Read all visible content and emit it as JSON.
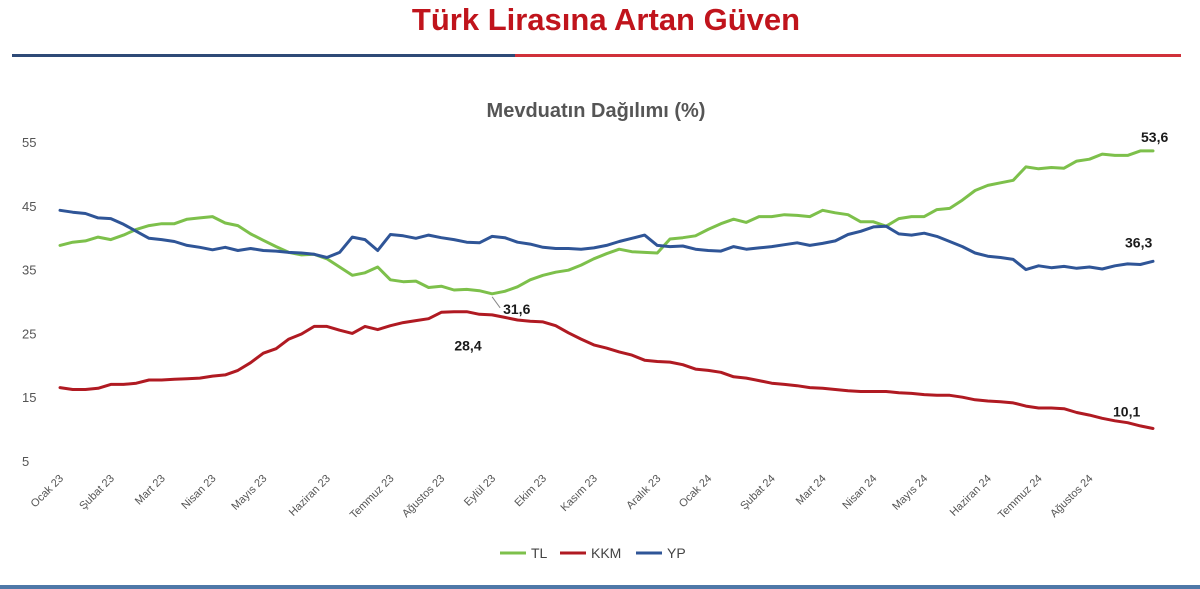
{
  "title": "Türk Lirasına Artan Güven",
  "colors": {
    "rule_left": "#2e4a77",
    "rule_right": "#d0313a"
  },
  "chart_data": {
    "type": "line",
    "subtitle": "Mevduatın Dağılımı (%)",
    "xlabel": "",
    "ylabel": "",
    "ylim": [
      5,
      55
    ],
    "y_ticks": [
      5,
      15,
      25,
      35,
      45,
      55
    ],
    "grid": false,
    "legend_position": "bottom-center",
    "x_tick_labels": [
      "Ocak 23",
      "Şubat 23",
      "Mart 23",
      "Nisan 23",
      "Mayıs 23",
      "Haziran 23",
      "Temmuz 23",
      "Ağustos 23",
      "Eylül 23",
      "Ekim 23",
      "Kasım 23",
      "Aralık 23",
      "Ocak 24",
      "Şubat 24",
      "Mart 24",
      "Nisan 24",
      "Mayıs 24",
      "Haziran 24",
      "Temmuz 24",
      "Ağustos 24"
    ],
    "x_tick_index": [
      0,
      4,
      8,
      12,
      16,
      21,
      26,
      30,
      34,
      38,
      42,
      47,
      51,
      56,
      60,
      64,
      68,
      73,
      77,
      81
    ],
    "series": [
      {
        "name": "TL",
        "color": "#7dc04b",
        "values": [
          38.8,
          39.3,
          39.5,
          40.1,
          39.7,
          40.4,
          41.3,
          41.9,
          42.2,
          42.2,
          42.9,
          43.1,
          43.3,
          42.3,
          41.9,
          40.6,
          39.6,
          38.6,
          37.7,
          37.3,
          37.4,
          36.7,
          35.4,
          34.1,
          34.5,
          35.4,
          33.4,
          33.1,
          33.2,
          32.2,
          32.4,
          31.8,
          31.9,
          31.7,
          31.2,
          31.6,
          32.3,
          33.4,
          34.1,
          34.6,
          34.9,
          35.7,
          36.7,
          37.5,
          38.2,
          37.8,
          37.7,
          37.6,
          39.8,
          40.0,
          40.3,
          41.3,
          42.2,
          42.9,
          42.4,
          43.3,
          43.3,
          43.6,
          43.5,
          43.3,
          44.3,
          43.9,
          43.6,
          42.5,
          42.5,
          41.8,
          43.0,
          43.3,
          43.3,
          44.4,
          44.6,
          45.9,
          47.4,
          48.2,
          48.6,
          49.0,
          51.1,
          50.8,
          51.0,
          50.9,
          52.0,
          52.3,
          53.1,
          52.9,
          52.9,
          53.6,
          53.6
        ],
        "last_label": "53,6",
        "min_label": "31,6"
      },
      {
        "name": "KKM",
        "color": "#b01a22",
        "values": [
          16.5,
          16.2,
          16.2,
          16.4,
          17.0,
          17.0,
          17.2,
          17.7,
          17.7,
          17.8,
          17.9,
          18.0,
          18.3,
          18.5,
          19.2,
          20.4,
          21.9,
          22.6,
          24.1,
          24.9,
          26.1,
          26.1,
          25.5,
          25.0,
          26.1,
          25.6,
          26.2,
          26.7,
          27.0,
          27.3,
          28.3,
          28.4,
          28.4,
          28.0,
          27.9,
          27.5,
          27.1,
          26.9,
          26.8,
          26.2,
          25.1,
          24.1,
          23.2,
          22.7,
          22.1,
          21.6,
          20.8,
          20.6,
          20.5,
          20.1,
          19.4,
          19.2,
          18.9,
          18.2,
          18.0,
          17.6,
          17.2,
          17.0,
          16.8,
          16.5,
          16.4,
          16.2,
          16.0,
          15.9,
          15.9,
          15.9,
          15.7,
          15.6,
          15.4,
          15.3,
          15.3,
          15.0,
          14.6,
          14.4,
          14.3,
          14.1,
          13.6,
          13.3,
          13.3,
          13.2,
          12.6,
          12.2,
          11.7,
          11.3,
          11.0,
          10.5,
          10.1
        ],
        "peak_label": "28,4",
        "last_label": "10,1"
      },
      {
        "name": "YP",
        "color": "#2f5597",
        "values": [
          44.3,
          44.0,
          43.8,
          43.1,
          43.0,
          42.1,
          41.0,
          39.9,
          39.7,
          39.4,
          38.8,
          38.5,
          38.1,
          38.5,
          38.0,
          38.3,
          38.0,
          37.9,
          37.7,
          37.6,
          37.4,
          36.9,
          37.7,
          40.1,
          39.7,
          38.0,
          40.5,
          40.3,
          39.9,
          40.4,
          40.0,
          39.7,
          39.3,
          39.2,
          40.2,
          40.0,
          39.3,
          39.0,
          38.5,
          38.3,
          38.3,
          38.2,
          38.4,
          38.8,
          39.4,
          39.9,
          40.4,
          38.8,
          38.6,
          38.7,
          38.2,
          38.0,
          37.9,
          38.6,
          38.2,
          38.4,
          38.6,
          38.9,
          39.2,
          38.8,
          39.1,
          39.5,
          40.5,
          41.0,
          41.7,
          41.8,
          40.6,
          40.4,
          40.7,
          40.2,
          39.4,
          38.6,
          37.6,
          37.1,
          36.9,
          36.6,
          35.0,
          35.6,
          35.3,
          35.5,
          35.2,
          35.4,
          35.1,
          35.6,
          35.9,
          35.8,
          36.3
        ],
        "last_label": "36,3"
      }
    ]
  }
}
